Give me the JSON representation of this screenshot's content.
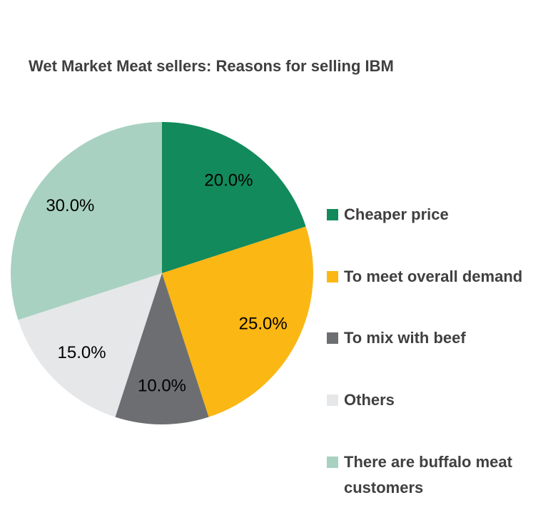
{
  "chart_data": {
    "type": "pie",
    "title": "Wet Market Meat sellers: Reasons for selling IBM",
    "categories": [
      "Cheaper price",
      "To meet overall demand",
      "To mix with beef",
      "Others",
      "There are buffalo meat customers"
    ],
    "values": [
      20,
      25,
      10,
      15,
      30
    ],
    "value_labels": [
      "20.0%",
      "25.0%",
      "10.0%",
      "15.0%",
      "30.0%"
    ],
    "colors": [
      "#128a5c",
      "#fbb714",
      "#6d6e71",
      "#e6e7e8",
      "#a8d1c1"
    ],
    "legend": "right"
  }
}
